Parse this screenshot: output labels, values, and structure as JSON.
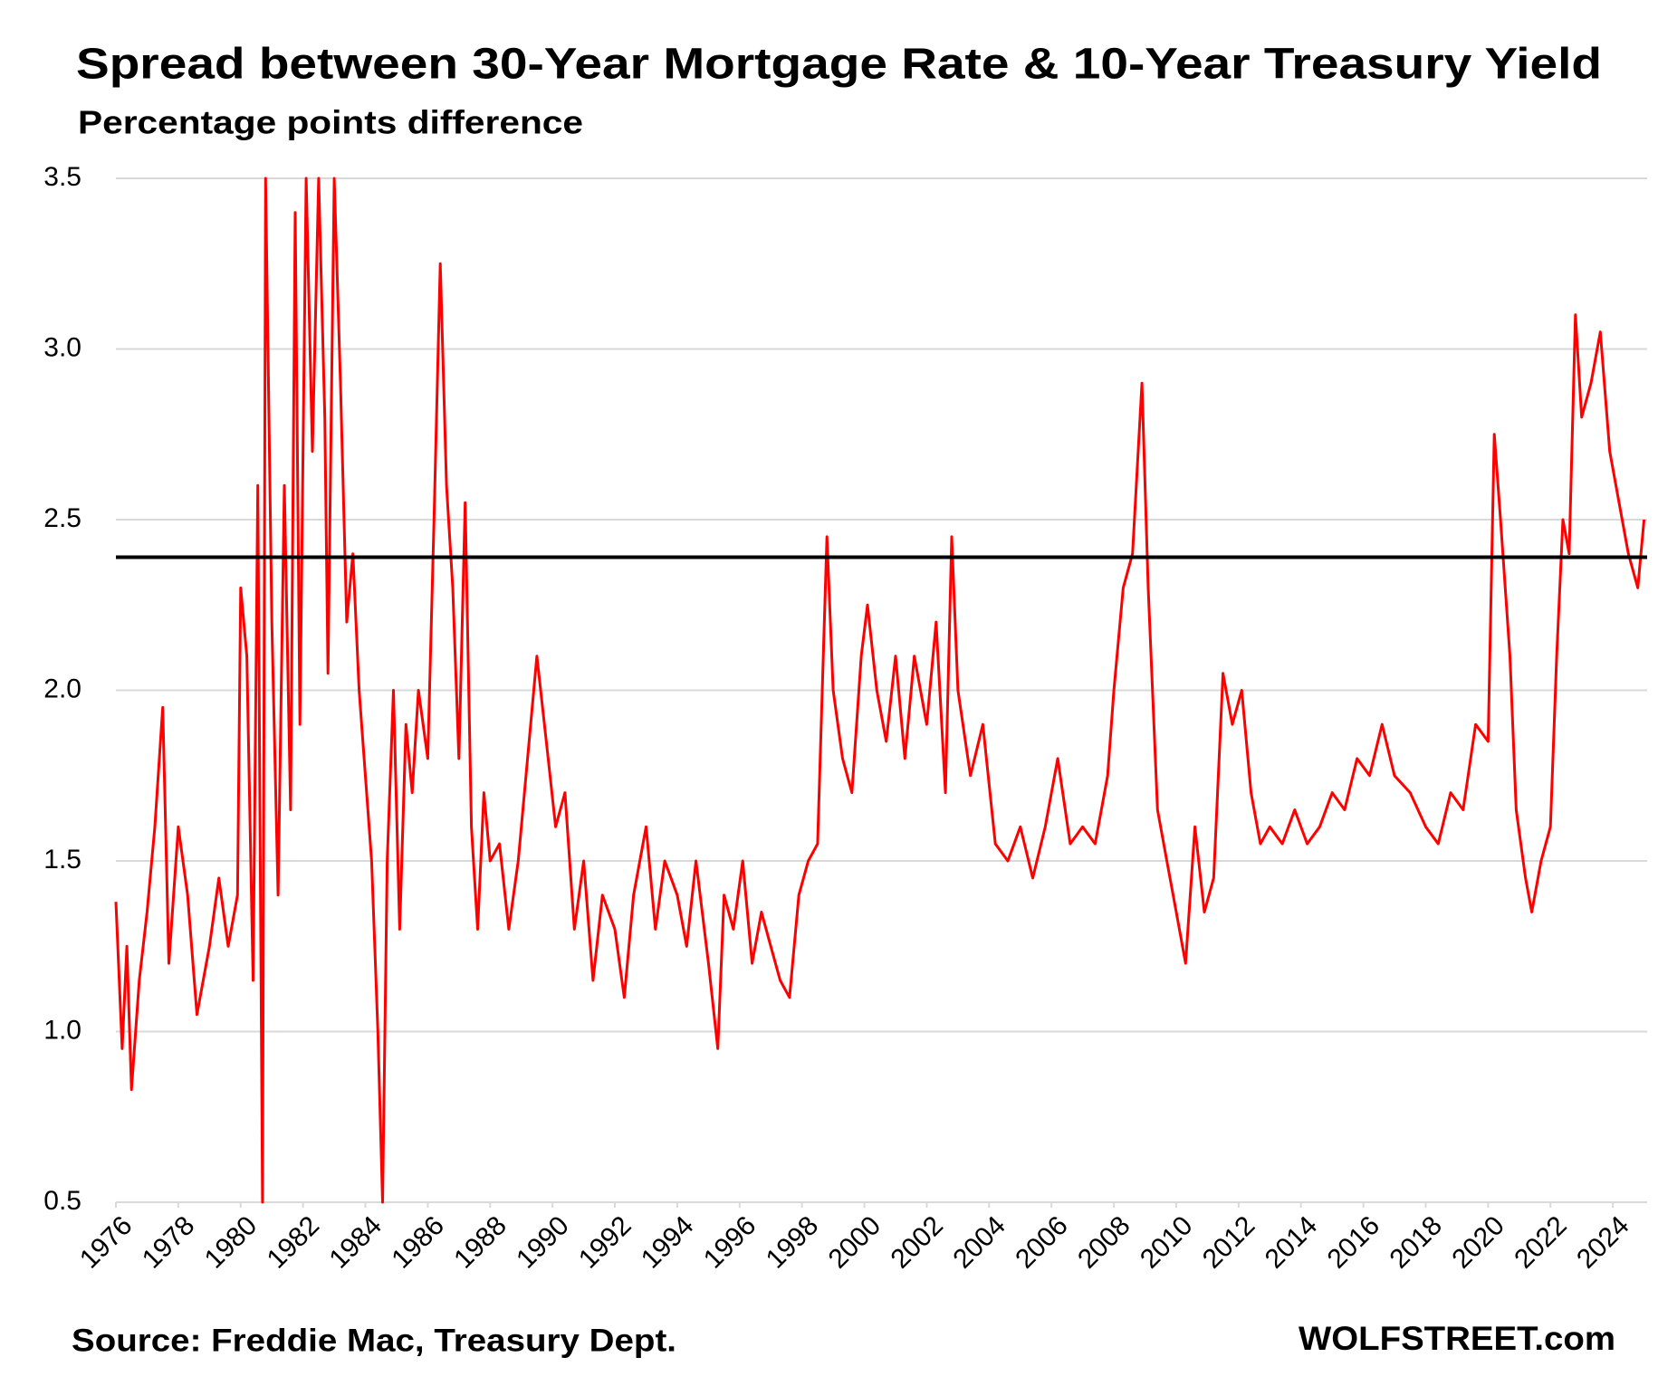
{
  "chart_data": {
    "type": "line",
    "title": "Spread between 30-Year Mortgage Rate & 10-Year Treasury Yield",
    "subtitle": "Percentage points difference",
    "source": "Source: Freddie Mac, Treasury Dept.",
    "brand": "WOLFSTREET.com",
    "color": "#ff0000",
    "grid": true,
    "reference_line": {
      "value": 2.39,
      "color": "#000000"
    },
    "xlim": [
      1976,
      2025.1
    ],
    "xticks": [
      1976,
      1978,
      1980,
      1982,
      1984,
      1986,
      1988,
      1990,
      1992,
      1994,
      1996,
      1998,
      2000,
      2002,
      2004,
      2006,
      2008,
      2010,
      2012,
      2014,
      2016,
      2018,
      2020,
      2022,
      2024
    ],
    "ylim": [
      0.5,
      3.5
    ],
    "yticks": [
      {
        "value": 0.5,
        "label": "0.5"
      },
      {
        "value": 1,
        "label": "1.0"
      },
      {
        "value": 1.5,
        "label": "1.5"
      },
      {
        "value": 2,
        "label": "2.0"
      },
      {
        "value": 2.5,
        "label": "2.5"
      },
      {
        "value": 3,
        "label": "3.0"
      },
      {
        "value": 3.5,
        "label": "3.5"
      }
    ],
    "x": [
      1976.0,
      1976.2,
      1976.35,
      1976.5,
      1976.75,
      1977.0,
      1977.25,
      1977.5,
      1977.7,
      1978.0,
      1978.3,
      1978.6,
      1979.0,
      1979.3,
      1979.6,
      1979.9,
      1980.0,
      1980.2,
      1980.4,
      1980.55,
      1980.7,
      1980.8,
      1981.0,
      1981.2,
      1981.4,
      1981.6,
      1981.75,
      1981.9,
      1982.1,
      1982.3,
      1982.5,
      1982.7,
      1982.8,
      1983.0,
      1983.2,
      1983.4,
      1983.6,
      1983.8,
      1984.0,
      1984.2,
      1984.4,
      1984.55,
      1984.7,
      1984.9,
      1985.1,
      1985.3,
      1985.5,
      1985.7,
      1986.0,
      1986.2,
      1986.4,
      1986.6,
      1986.8,
      1987.0,
      1987.2,
      1987.4,
      1987.6,
      1987.8,
      1988.0,
      1988.3,
      1988.6,
      1988.9,
      1989.2,
      1989.5,
      1989.8,
      1990.1,
      1990.4,
      1990.7,
      1991.0,
      1991.3,
      1991.6,
      1992.0,
      1992.3,
      1992.6,
      1993.0,
      1993.3,
      1993.6,
      1994.0,
      1994.3,
      1994.6,
      1995.0,
      1995.3,
      1995.5,
      1995.8,
      1996.1,
      1996.4,
      1996.7,
      1997.0,
      1997.3,
      1997.6,
      1997.9,
      1998.2,
      1998.5,
      1998.8,
      1999.0,
      1999.3,
      1999.6,
      1999.9,
      2000.1,
      2000.4,
      2000.7,
      2001.0,
      2001.3,
      2001.6,
      2002.0,
      2002.3,
      2002.6,
      2002.8,
      2003.0,
      2003.4,
      2003.8,
      2004.2,
      2004.6,
      2005.0,
      2005.4,
      2005.8,
      2006.2,
      2006.6,
      2007.0,
      2007.4,
      2007.8,
      2008.0,
      2008.3,
      2008.6,
      2008.9,
      2009.1,
      2009.4,
      2009.7,
      2010.0,
      2010.3,
      2010.6,
      2010.9,
      2011.2,
      2011.5,
      2011.8,
      2012.1,
      2012.4,
      2012.7,
      2013.0,
      2013.4,
      2013.8,
      2014.2,
      2014.6,
      2015.0,
      2015.4,
      2015.8,
      2016.2,
      2016.6,
      2017.0,
      2017.5,
      2018.0,
      2018.4,
      2018.8,
      2019.2,
      2019.6,
      2020.0,
      2020.2,
      2020.4,
      2020.7,
      2020.9,
      2021.2,
      2021.4,
      2021.7,
      2022.0,
      2022.2,
      2022.4,
      2022.6,
      2022.8,
      2023.0,
      2023.3,
      2023.6,
      2023.9,
      2024.2,
      2024.5,
      2024.8,
      2025.0
    ],
    "values": [
      1.38,
      0.95,
      1.25,
      0.83,
      1.15,
      1.35,
      1.6,
      1.95,
      1.2,
      1.6,
      1.4,
      1.05,
      1.25,
      1.45,
      1.25,
      1.4,
      2.3,
      2.1,
      1.15,
      2.6,
      0.5,
      3.5,
      2.2,
      1.4,
      2.6,
      1.65,
      3.4,
      1.9,
      3.5,
      2.7,
      3.5,
      2.8,
      2.05,
      3.5,
      2.9,
      2.2,
      2.4,
      2.0,
      1.75,
      1.5,
      1.0,
      0.5,
      1.5,
      2.0,
      1.3,
      1.9,
      1.7,
      2.0,
      1.8,
      2.5,
      3.25,
      2.6,
      2.3,
      1.8,
      2.55,
      1.6,
      1.3,
      1.7,
      1.5,
      1.55,
      1.3,
      1.5,
      1.8,
      2.1,
      1.85,
      1.6,
      1.7,
      1.3,
      1.5,
      1.15,
      1.4,
      1.3,
      1.1,
      1.4,
      1.6,
      1.3,
      1.5,
      1.4,
      1.25,
      1.5,
      1.2,
      0.95,
      1.4,
      1.3,
      1.5,
      1.2,
      1.35,
      1.25,
      1.15,
      1.1,
      1.4,
      1.5,
      1.55,
      2.45,
      2.0,
      1.8,
      1.7,
      2.1,
      2.25,
      2.0,
      1.85,
      2.1,
      1.8,
      2.1,
      1.9,
      2.2,
      1.7,
      2.45,
      2.0,
      1.75,
      1.9,
      1.55,
      1.5,
      1.6,
      1.45,
      1.6,
      1.8,
      1.55,
      1.6,
      1.55,
      1.75,
      2.0,
      2.3,
      2.4,
      2.9,
      2.3,
      1.65,
      1.5,
      1.35,
      1.2,
      1.6,
      1.35,
      1.45,
      2.05,
      1.9,
      2.0,
      1.7,
      1.55,
      1.6,
      1.55,
      1.65,
      1.55,
      1.6,
      1.7,
      1.65,
      1.8,
      1.75,
      1.9,
      1.75,
      1.7,
      1.6,
      1.55,
      1.7,
      1.65,
      1.9,
      1.85,
      2.75,
      2.5,
      2.1,
      1.65,
      1.45,
      1.35,
      1.5,
      1.6,
      2.1,
      2.5,
      2.4,
      3.1,
      2.8,
      2.9,
      3.05,
      2.7,
      2.55,
      2.4,
      2.3,
      2.5
    ]
  }
}
